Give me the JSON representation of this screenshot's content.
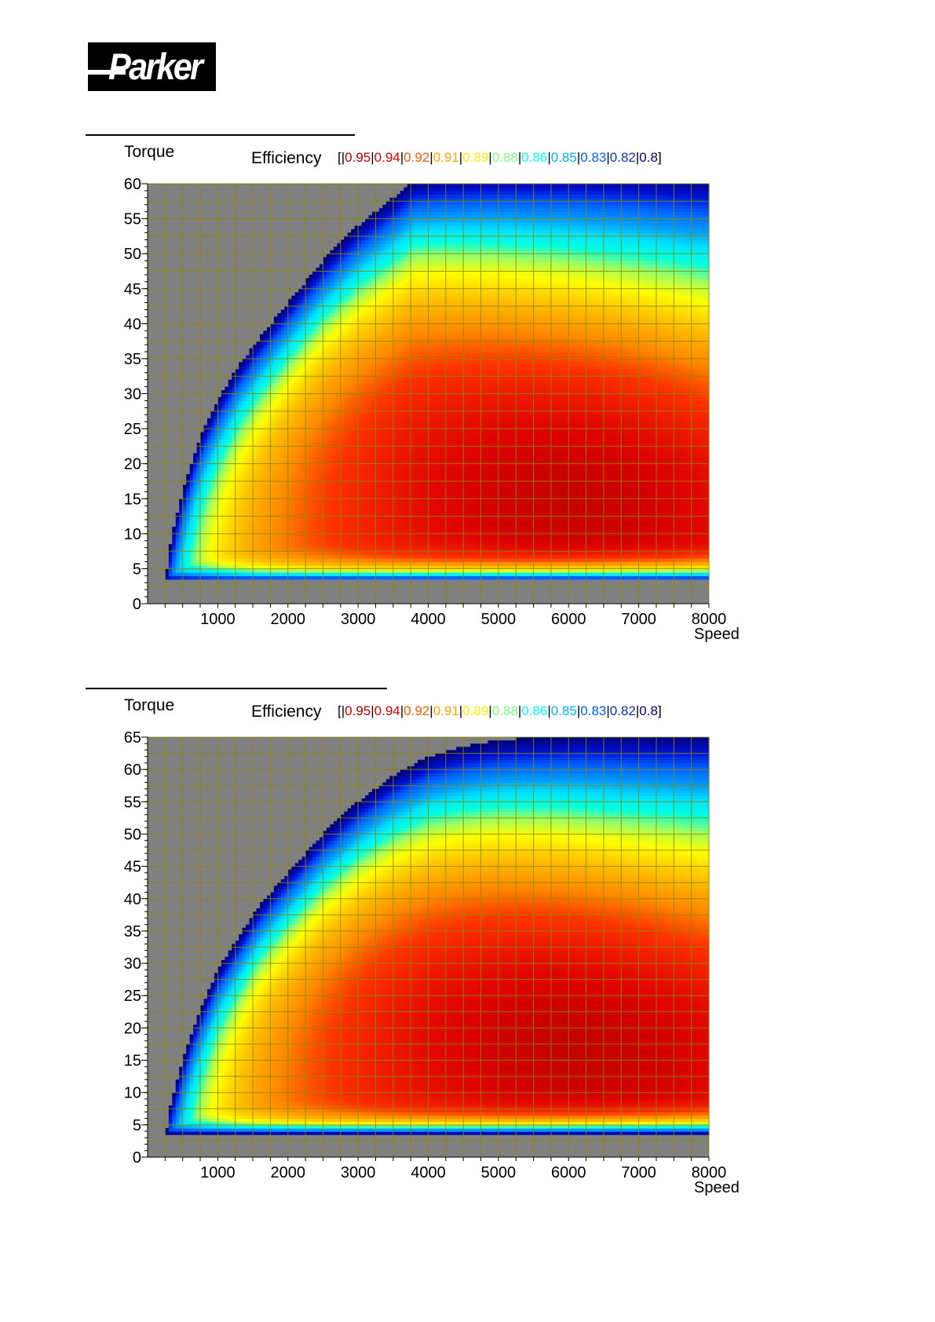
{
  "logo": {
    "text": "Parker"
  },
  "legend_prefix": "[|",
  "legend_suffix": "]",
  "legend_entries": [
    {
      "label": "0.95",
      "color": "#b30000"
    },
    {
      "label": "0.94",
      "color": "#e00000"
    },
    {
      "label": "0.92",
      "color": "#ff5a00"
    },
    {
      "label": "0.91",
      "color": "#ffa500"
    },
    {
      "label": "0.89",
      "color": "#ffee00"
    },
    {
      "label": "0.88",
      "color": "#80ff80"
    },
    {
      "label": "0.86",
      "color": "#00ffff"
    },
    {
      "label": "0.85",
      "color": "#00b0ff"
    },
    {
      "label": "0.83",
      "color": "#0060ff"
    },
    {
      "label": "0.82",
      "color": "#1030c0"
    },
    {
      "label": "0.8",
      "color": "#000080"
    }
  ],
  "colors": {
    "background_outside_envelope": "#808080",
    "grid": "#8a8a00"
  },
  "chart_data": [
    {
      "type": "heatmap",
      "title": "Efficiency",
      "xlabel": "Speed",
      "ylabel": "Torque",
      "xlim": [
        0,
        8000
      ],
      "ylim": [
        0,
        60
      ],
      "x_ticks": [
        1000,
        2000,
        3000,
        4000,
        5000,
        6000,
        7000,
        8000
      ],
      "y_ticks": [
        0,
        5,
        10,
        15,
        20,
        25,
        30,
        35,
        40,
        45,
        50,
        55,
        60
      ],
      "grid": true,
      "min_speed": 260,
      "min_torque": 3.3,
      "envelope": [
        [
          260,
          3.8
        ],
        [
          300,
          7
        ],
        [
          400,
          12
        ],
        [
          500,
          16
        ],
        [
          650,
          21
        ],
        [
          800,
          25
        ],
        [
          1000,
          29
        ],
        [
          1300,
          34
        ],
        [
          1600,
          38
        ],
        [
          2000,
          43
        ],
        [
          2500,
          49
        ],
        [
          3000,
          54
        ],
        [
          3500,
          58
        ],
        [
          3800,
          60.5
        ],
        [
          4200,
          61
        ],
        [
          5000,
          61.5
        ],
        [
          6000,
          61.7
        ],
        [
          7000,
          61.5
        ],
        [
          8000,
          61
        ]
      ],
      "peak_efficiency_point": [
        6500,
        20
      ],
      "efficiency_range": [
        0.8,
        0.95
      ]
    },
    {
      "type": "heatmap",
      "title": "Efficiency",
      "xlabel": "Speed",
      "ylabel": "Torque",
      "xlim": [
        0,
        8000
      ],
      "ylim": [
        0,
        65
      ],
      "x_ticks": [
        1000,
        2000,
        3000,
        4000,
        5000,
        6000,
        7000,
        8000
      ],
      "y_ticks": [
        0,
        5,
        10,
        15,
        20,
        25,
        30,
        35,
        40,
        45,
        50,
        55,
        60,
        65
      ],
      "grid": true,
      "min_speed": 270,
      "min_torque": 3.6,
      "envelope": [
        [
          270,
          4
        ],
        [
          300,
          7
        ],
        [
          400,
          11
        ],
        [
          500,
          15
        ],
        [
          650,
          20
        ],
        [
          800,
          24
        ],
        [
          1000,
          29
        ],
        [
          1300,
          34
        ],
        [
          1600,
          39
        ],
        [
          2000,
          44
        ],
        [
          2500,
          50
        ],
        [
          3000,
          55
        ],
        [
          3500,
          59
        ],
        [
          4000,
          62
        ],
        [
          4500,
          63.5
        ],
        [
          5000,
          64.5
        ],
        [
          5500,
          65
        ],
        [
          6000,
          65.3
        ],
        [
          8000,
          65.5
        ]
      ],
      "peak_efficiency_point": [
        6500,
        22
      ],
      "efficiency_range": [
        0.8,
        0.95
      ]
    }
  ]
}
